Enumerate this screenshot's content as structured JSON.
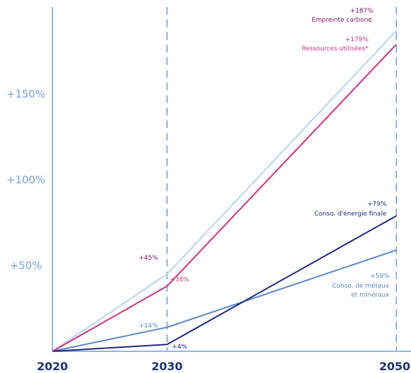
{
  "chart_data": {
    "type": "line",
    "x": [
      2020,
      2030,
      2050
    ],
    "x_tick_labels": [
      "2020",
      "2030",
      "2050"
    ],
    "ylim": [
      0,
      200
    ],
    "y_ticks": [
      50,
      100,
      150
    ],
    "y_tick_labels": [
      "+50%",
      "+100%",
      "+150%"
    ],
    "grid": "dashed vertical lines at 2030 and 2050",
    "series": [
      {
        "name": "Empreinte carbone",
        "color": "#b9d3f0",
        "values": [
          0,
          45,
          187
        ],
        "value_labels": [
          "",
          "+45%",
          "+187%"
        ],
        "label_color": "#7a1550"
      },
      {
        "name": "Ressources utilisées*",
        "color": "#c8347e",
        "values": [
          0,
          38,
          179
        ],
        "value_labels": [
          "",
          "+38%",
          "+179%"
        ],
        "label_color": "#c8347e"
      },
      {
        "name": "Conso. d'énergie finale",
        "color": "#1e2a78",
        "values": [
          0,
          4,
          79
        ],
        "value_labels": [
          "",
          "+4%",
          "+79%"
        ],
        "label_color": "#1e2a78"
      },
      {
        "name": "Conso. de métaux et minéraux",
        "name_lines": [
          "Conso. de métaux",
          "et minéraux"
        ],
        "color": "#5b86c4",
        "values": [
          0,
          14,
          59
        ],
        "value_labels": [
          "",
          "+14%",
          "+59%"
        ],
        "label_color": "#5b86c4"
      }
    ]
  }
}
